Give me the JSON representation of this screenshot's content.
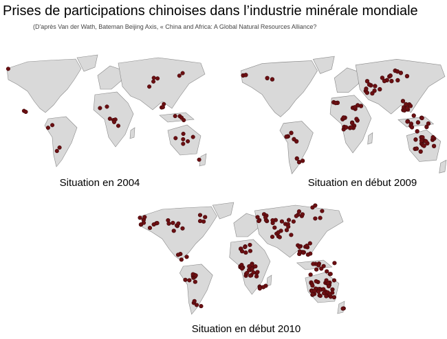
{
  "title": "Prises de participations chinoises dans l’industrie minérale mondiale",
  "subtitle": "(D'après Van der Wath, Bateman Beijing Axis, « China and Africa: A Global Natural Resources Alliance?",
  "maps": [
    {
      "caption": "Situation en 2004"
    },
    {
      "caption": "Situation en début 2009"
    },
    {
      "caption": "Situation en début 2010"
    }
  ]
}
